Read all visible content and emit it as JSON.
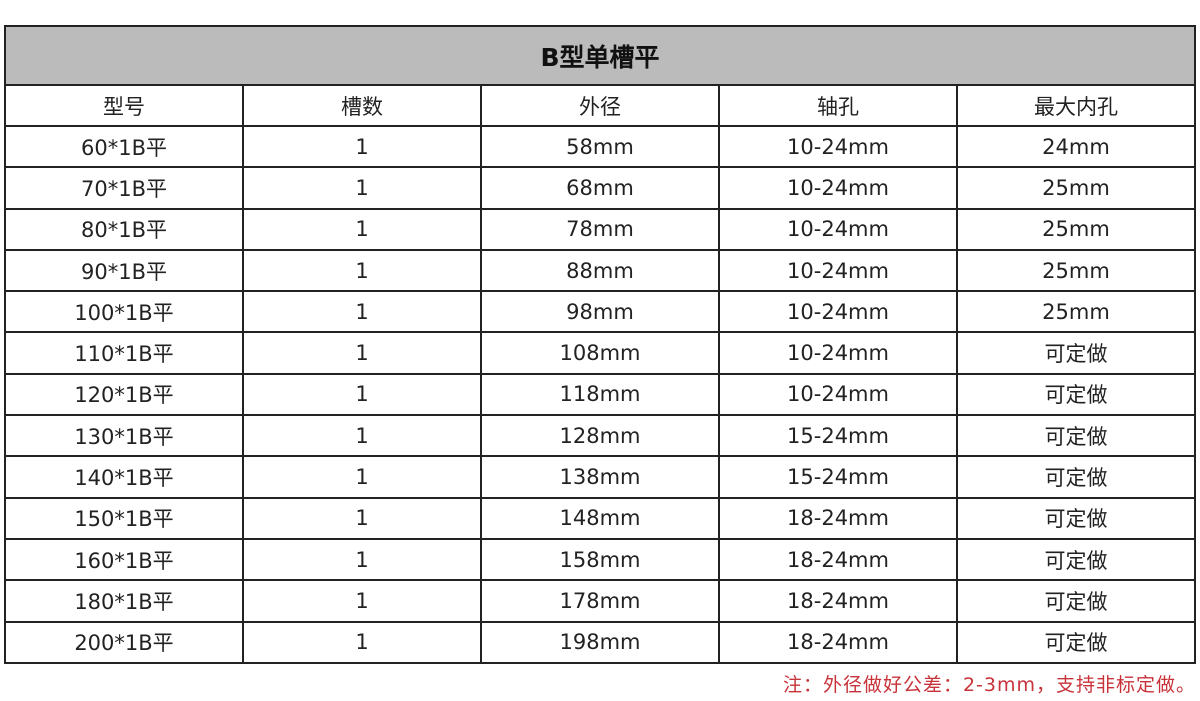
{
  "title": "B型单槽平",
  "columns": [
    "型号",
    "槽数",
    "外径",
    "轴孔",
    "最大内孔"
  ],
  "rows": [
    [
      "60*1B平",
      "1",
      "58mm",
      "10-24mm",
      "24mm"
    ],
    [
      "70*1B平",
      "1",
      "68mm",
      "10-24mm",
      "25mm"
    ],
    [
      "80*1B平",
      "1",
      "78mm",
      "10-24mm",
      "25mm"
    ],
    [
      "90*1B平",
      "1",
      "88mm",
      "10-24mm",
      "25mm"
    ],
    [
      "100*1B平",
      "1",
      "98mm",
      "10-24mm",
      "25mm"
    ],
    [
      "110*1B平",
      "1",
      "108mm",
      "10-24mm",
      "可定做"
    ],
    [
      "120*1B平",
      "1",
      "118mm",
      "10-24mm",
      "可定做"
    ],
    [
      "130*1B平",
      "1",
      "128mm",
      "15-24mm",
      "可定做"
    ],
    [
      "140*1B平",
      "1",
      "138mm",
      "15-24mm",
      "可定做"
    ],
    [
      "150*1B平",
      "1",
      "148mm",
      "18-24mm",
      "可定做"
    ],
    [
      "160*1B平",
      "1",
      "158mm",
      "18-24mm",
      "可定做"
    ],
    [
      "180*1B平",
      "1",
      "178mm",
      "18-24mm",
      "可定做"
    ],
    [
      "200*1B平",
      "1",
      "198mm",
      "18-24mm",
      "可定做"
    ]
  ],
  "note": "注：外径做好公差：2-3mm，支持非标定做。",
  "colors": {
    "title_bg": "#bbbbbb",
    "note": "#c8333a",
    "border": "#222222"
  }
}
